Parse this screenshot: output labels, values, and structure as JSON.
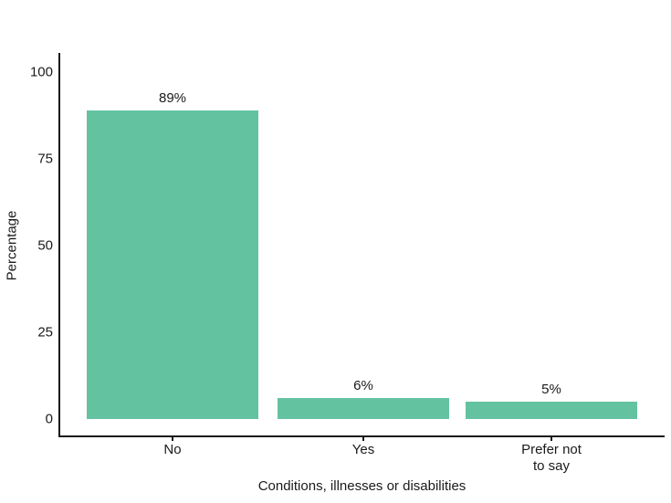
{
  "chart_data": {
    "type": "bar",
    "title": "",
    "categories": [
      "No",
      "Yes",
      "Prefer not\nto say"
    ],
    "values": [
      89,
      6,
      5
    ],
    "value_labels": [
      "89%",
      "6%",
      "5%"
    ],
    "xlabel": "Conditions, illnesses or disabilities",
    "ylabel": "Percentage",
    "ylim": [
      0,
      100
    ],
    "yticks": [
      0,
      25,
      50,
      75,
      100
    ],
    "legend": "none",
    "grid": "off",
    "bar_color": "#63C3A1",
    "axis_color": "#1A1A1A",
    "text_color": "#1A1A1A",
    "background_color": "#FFFFFF"
  }
}
